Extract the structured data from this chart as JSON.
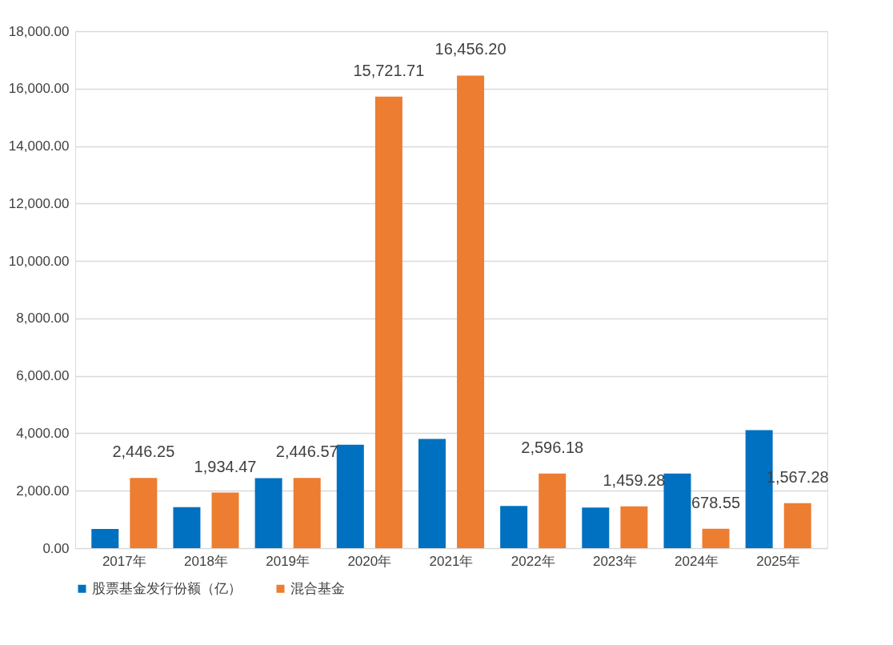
{
  "chart_data": {
    "type": "bar",
    "categories": [
      "2017年",
      "2018年",
      "2019年",
      "2020年",
      "2021年",
      "2022年",
      "2023年",
      "2024年",
      "2025年"
    ],
    "series": [
      {
        "name": "股票基金发行份额（亿）",
        "color": "#0070c0",
        "values": [
          670,
          1425,
          2440,
          3600,
          3805,
          1470,
          1414,
          2595,
          4112
        ]
      },
      {
        "name": "混合基金",
        "color": "#ed7d31",
        "values": [
          2446.25,
          1934.47,
          2446.57,
          15721.71,
          16456.2,
          2596.18,
          1459.28,
          678.55,
          1567.28
        ],
        "value_labels": [
          "2,446.25",
          "1,934.47",
          "2,446.57",
          "15,721.71",
          "16,456.20",
          "2,596.18",
          "1,459.28",
          "678.55",
          "1,567.28"
        ]
      }
    ],
    "ylim": [
      0,
      18000
    ],
    "yticks": [
      {
        "value": 0,
        "label": "0.00"
      },
      {
        "value": 2000,
        "label": "2,000.00"
      },
      {
        "value": 4000,
        "label": "4,000.00"
      },
      {
        "value": 6000,
        "label": "6,000.00"
      },
      {
        "value": 8000,
        "label": "8,000.00"
      },
      {
        "value": 10000,
        "label": "10,000.00"
      },
      {
        "value": 12000,
        "label": "12,000.00"
      },
      {
        "value": 14000,
        "label": "14,000.00"
      },
      {
        "value": 16000,
        "label": "16,000.00"
      },
      {
        "value": 18000,
        "label": "18,000.00"
      }
    ],
    "grid": "y",
    "legend": "bottom"
  }
}
